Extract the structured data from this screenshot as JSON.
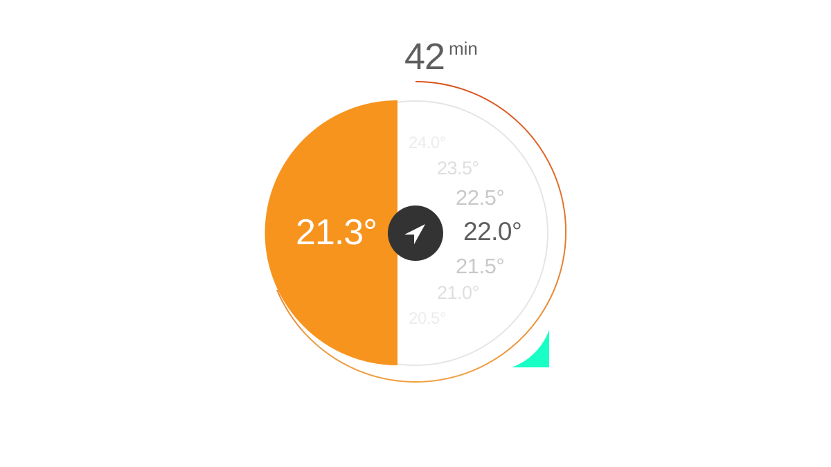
{
  "timer": {
    "value": "42",
    "unit": "min"
  },
  "thermostat": {
    "current_temp": "21.3°",
    "heating_level": 0.5,
    "setpoints": [
      {
        "label": "24.0°",
        "state": "faint"
      },
      {
        "label": "23.5°",
        "state": "light"
      },
      {
        "label": "22.5°",
        "state": "medium"
      },
      {
        "label": "22.0°",
        "state": "selected"
      },
      {
        "label": "21.5°",
        "state": "medium"
      },
      {
        "label": "21.0°",
        "state": "light"
      },
      {
        "label": "20.5°",
        "state": "faint"
      }
    ],
    "nav_icon": "navigation-arrow-icon"
  },
  "colors": {
    "fill": "#f7941e",
    "ring_dark": "#d9531e",
    "ring_light": "#f0a040",
    "track": "#e5e5e5",
    "button": "#333333",
    "accent": "#1affc6",
    "text_selected": "#5e5e5e",
    "text_medium": "#c9c9c9",
    "text_light": "#dedede",
    "text_faint": "#ececec"
  }
}
